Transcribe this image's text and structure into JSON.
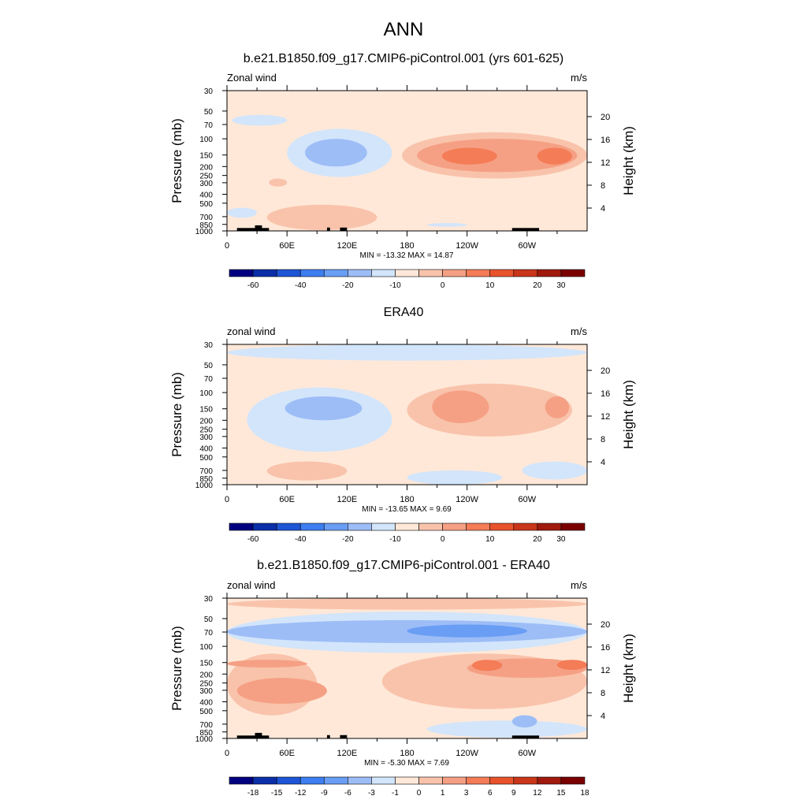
{
  "main_title": "ANN",
  "colors": {
    "bg_light_red": "#ffe8d8",
    "fill_steps": [
      "#000080",
      "#0a2fa8",
      "#1e55d6",
      "#3d7ef0",
      "#6a9ef4",
      "#9dbdf7",
      "#d2e5fb",
      "#ffe8d8",
      "#f9c3ab",
      "#f5a084",
      "#f47c57",
      "#e8532c",
      "#c9361a",
      "#a01a0e",
      "#7a0000"
    ],
    "land": "#000000"
  },
  "chart_data": [
    {
      "type": "heatmap",
      "title": "b.e21.B1850.f09_g17.CMIP6-piControl.001 (yrs 601-625)",
      "left_label": "Zonal wind",
      "right_label": "m/s",
      "ylabel": "Pressure (mb)",
      "y2label": "Height (km)",
      "x_ticks": [
        "0",
        "60E",
        "120E",
        "180",
        "120W",
        "60W"
      ],
      "x_range": [
        0,
        360
      ],
      "y_ticks": [
        "30",
        "50",
        "70",
        "100",
        "150",
        "200",
        "250",
        "300",
        "400",
        "500",
        "700",
        "850",
        "1000"
      ],
      "y2_ticks": [
        "20",
        "16",
        "12",
        "8",
        "4"
      ],
      "stats": "MIN = -13.32  MAX =  14.87",
      "colorbar_labels": [
        "-60",
        "-40",
        "-20",
        "-10",
        "0",
        "10",
        "20",
        "30"
      ],
      "regions": [
        {
          "level": 6,
          "lon": [
            5,
            60
          ],
          "p": [
            55,
            72
          ]
        },
        {
          "level": 6,
          "lon": [
            60,
            165
          ],
          "p": [
            78,
            260
          ]
        },
        {
          "level": 5,
          "lon": [
            78,
            140
          ],
          "p": [
            100,
            200
          ]
        },
        {
          "level": 8,
          "lon": [
            175,
            360
          ],
          "p": [
            85,
            270
          ]
        },
        {
          "level": 9,
          "lon": [
            190,
            350
          ],
          "p": [
            100,
            230
          ]
        },
        {
          "level": 10,
          "lon": [
            215,
            270
          ],
          "p": [
            125,
            190
          ]
        },
        {
          "level": 10,
          "lon": [
            310,
            345
          ],
          "p": [
            125,
            190
          ]
        },
        {
          "level": 8,
          "lon": [
            40,
            150
          ],
          "p": [
            520,
            980
          ]
        },
        {
          "level": 8,
          "lon": [
            42,
            60
          ],
          "p": [
            270,
            330
          ]
        },
        {
          "level": 6,
          "lon": [
            0,
            30
          ],
          "p": [
            560,
            720
          ]
        },
        {
          "level": 6,
          "lon": [
            200,
            240
          ],
          "p": [
            820,
            900
          ]
        }
      ],
      "land": [
        {
          "lon": [
            10,
            42
          ],
          "p": [
            930,
            1000
          ]
        },
        {
          "lon": [
            28,
            35
          ],
          "p": [
            870,
            1000
          ]
        },
        {
          "lon": [
            100,
            103
          ],
          "p": [
            920,
            1000
          ]
        },
        {
          "lon": [
            113,
            120
          ],
          "p": [
            920,
            1000
          ]
        },
        {
          "lon": [
            285,
            312
          ],
          "p": [
            930,
            1000
          ]
        }
      ]
    },
    {
      "type": "heatmap",
      "title": "ERA40",
      "left_label": "zonal wind",
      "right_label": "m/s",
      "ylabel": "Pressure (mb)",
      "y2label": "Height (km)",
      "x_ticks": [
        "0",
        "60E",
        "120E",
        "180",
        "120W",
        "60W"
      ],
      "x_range": [
        0,
        360
      ],
      "y_ticks": [
        "30",
        "50",
        "70",
        "100",
        "150",
        "200",
        "250",
        "300",
        "400",
        "500",
        "700",
        "850",
        "1000"
      ],
      "y2_ticks": [
        "20",
        "16",
        "12",
        "8",
        "4"
      ],
      "stats": "MIN = -13.65  MAX =   9.69",
      "colorbar_labels": [
        "-60",
        "-40",
        "-20",
        "-10",
        "0",
        "10",
        "20",
        "30"
      ],
      "regions": [
        {
          "level": 6,
          "lon": [
            0,
            360
          ],
          "p": [
            30,
            45
          ]
        },
        {
          "level": 6,
          "lon": [
            20,
            165
          ],
          "p": [
            88,
            440
          ]
        },
        {
          "level": 5,
          "lon": [
            58,
            135
          ],
          "p": [
            110,
            200
          ]
        },
        {
          "level": 8,
          "lon": [
            180,
            345
          ],
          "p": [
            80,
            300
          ]
        },
        {
          "level": 9,
          "lon": [
            205,
            262
          ],
          "p": [
            95,
            215
          ]
        },
        {
          "level": 9,
          "lon": [
            318,
            342
          ],
          "p": [
            110,
            190
          ]
        },
        {
          "level": 8,
          "lon": [
            40,
            120
          ],
          "p": [
            560,
            900
          ]
        },
        {
          "level": 6,
          "lon": [
            180,
            275
          ],
          "p": [
            700,
            1000
          ]
        },
        {
          "level": 6,
          "lon": [
            295,
            360
          ],
          "p": [
            560,
            880
          ]
        }
      ],
      "land": []
    },
    {
      "type": "heatmap",
      "title": "b.e21.B1850.f09_g17.CMIP6-piControl.001 - ERA40",
      "left_label": "zonal wind",
      "right_label": "m/s",
      "ylabel": "Pressure (mb)",
      "y2label": "Height (km)",
      "x_ticks": [
        "0",
        "60E",
        "120E",
        "180",
        "120W",
        "60W"
      ],
      "x_range": [
        0,
        360
      ],
      "y_ticks": [
        "30",
        "50",
        "70",
        "100",
        "150",
        "200",
        "250",
        "300",
        "400",
        "500",
        "700",
        "850",
        "1000"
      ],
      "y2_ticks": [
        "20",
        "16",
        "12",
        "8",
        "4"
      ],
      "stats": "MIN =  -5.30  MAX =   7.69",
      "colorbar_labels": [
        "-18",
        "-15",
        "-12",
        "-9",
        "-6",
        "-3",
        "-1",
        "0",
        "1",
        "3",
        "6",
        "9",
        "12",
        "15",
        "18"
      ],
      "regions": [
        {
          "level": 8,
          "lon": [
            0,
            360
          ],
          "p": [
            30,
            40
          ]
        },
        {
          "level": 6,
          "lon": [
            0,
            360
          ],
          "p": [
            42,
            118
          ]
        },
        {
          "level": 5,
          "lon": [
            0,
            360
          ],
          "p": [
            52,
            92
          ]
        },
        {
          "level": 4,
          "lon": [
            180,
            300
          ],
          "p": [
            58,
            80
          ]
        },
        {
          "level": 8,
          "lon": [
            0,
            90
          ],
          "p": [
            120,
            560
          ]
        },
        {
          "level": 9,
          "lon": [
            0,
            80
          ],
          "p": [
            140,
            170
          ]
        },
        {
          "level": 9,
          "lon": [
            10,
            100
          ],
          "p": [
            220,
            420
          ]
        },
        {
          "level": 8,
          "lon": [
            155,
            360
          ],
          "p": [
            120,
            480
          ]
        },
        {
          "level": 9,
          "lon": [
            240,
            360
          ],
          "p": [
            135,
            220
          ]
        },
        {
          "level": 10,
          "lon": [
            245,
            275
          ],
          "p": [
            140,
            185
          ]
        },
        {
          "level": 10,
          "lon": [
            330,
            360
          ],
          "p": [
            140,
            180
          ]
        },
        {
          "level": 6,
          "lon": [
            200,
            360
          ],
          "p": [
            640,
            980
          ]
        },
        {
          "level": 5,
          "lon": [
            285,
            310
          ],
          "p": [
            560,
            760
          ]
        }
      ],
      "land": [
        {
          "lon": [
            10,
            42
          ],
          "p": [
            930,
            1000
          ]
        },
        {
          "lon": [
            28,
            35
          ],
          "p": [
            870,
            1000
          ]
        },
        {
          "lon": [
            100,
            103
          ],
          "p": [
            920,
            1000
          ]
        },
        {
          "lon": [
            113,
            120
          ],
          "p": [
            920,
            1000
          ]
        },
        {
          "lon": [
            285,
            312
          ],
          "p": [
            930,
            1000
          ]
        }
      ]
    }
  ]
}
